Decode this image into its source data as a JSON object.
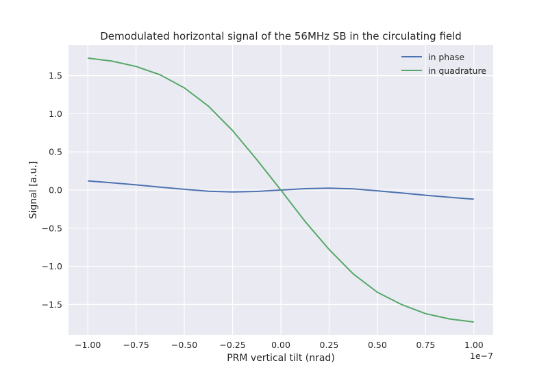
{
  "chart_data": {
    "type": "line",
    "title": "Demodulated horizontal signal of the 56MHz SB in the circulating field",
    "xlabel": "PRM vertical tilt (nrad)",
    "ylabel": "Signal [a.u.]",
    "x_offset_label": "1e−7",
    "x_scale_note": "x values shown on axis are multiplied by 1e-7",
    "xlim": [
      -1.1,
      1.1
    ],
    "ylim": [
      -1.9,
      1.9
    ],
    "xticks": [
      -1.0,
      -0.75,
      -0.5,
      -0.25,
      0.0,
      0.25,
      0.5,
      0.75,
      1.0
    ],
    "xtick_labels": [
      "−1.00",
      "−0.75",
      "−0.50",
      "−0.25",
      "0.00",
      "0.25",
      "0.50",
      "0.75",
      "1.00"
    ],
    "yticks": [
      -1.5,
      -1.0,
      -0.5,
      0.0,
      0.5,
      1.0,
      1.5
    ],
    "ytick_labels": [
      "−1.5",
      "−1.0",
      "−0.5",
      "0.0",
      "0.5",
      "1.0",
      "1.5"
    ],
    "grid": true,
    "legend_position": "top-right",
    "x": [
      -1.0,
      -0.875,
      -0.75,
      -0.625,
      -0.5,
      -0.375,
      -0.25,
      -0.125,
      0.0,
      0.125,
      0.25,
      0.375,
      0.5,
      0.625,
      0.75,
      0.875,
      1.0
    ],
    "series": [
      {
        "name": "in phase",
        "color": "#4c72b0",
        "values": [
          0.12,
          0.095,
          0.068,
          0.038,
          0.01,
          -0.015,
          -0.025,
          -0.018,
          0.0,
          0.018,
          0.025,
          0.015,
          -0.01,
          -0.038,
          -0.068,
          -0.095,
          -0.12
        ]
      },
      {
        "name": "in quadrature",
        "color": "#55a868",
        "values": [
          1.73,
          1.69,
          1.62,
          1.51,
          1.34,
          1.1,
          0.78,
          0.4,
          0.0,
          -0.41,
          -0.78,
          -1.1,
          -1.34,
          -1.5,
          -1.62,
          -1.69,
          -1.73
        ]
      }
    ]
  },
  "style": {
    "plot_background": "#eaeaf2",
    "grid_color": "#ffffff",
    "page_background": "#ffffff"
  }
}
